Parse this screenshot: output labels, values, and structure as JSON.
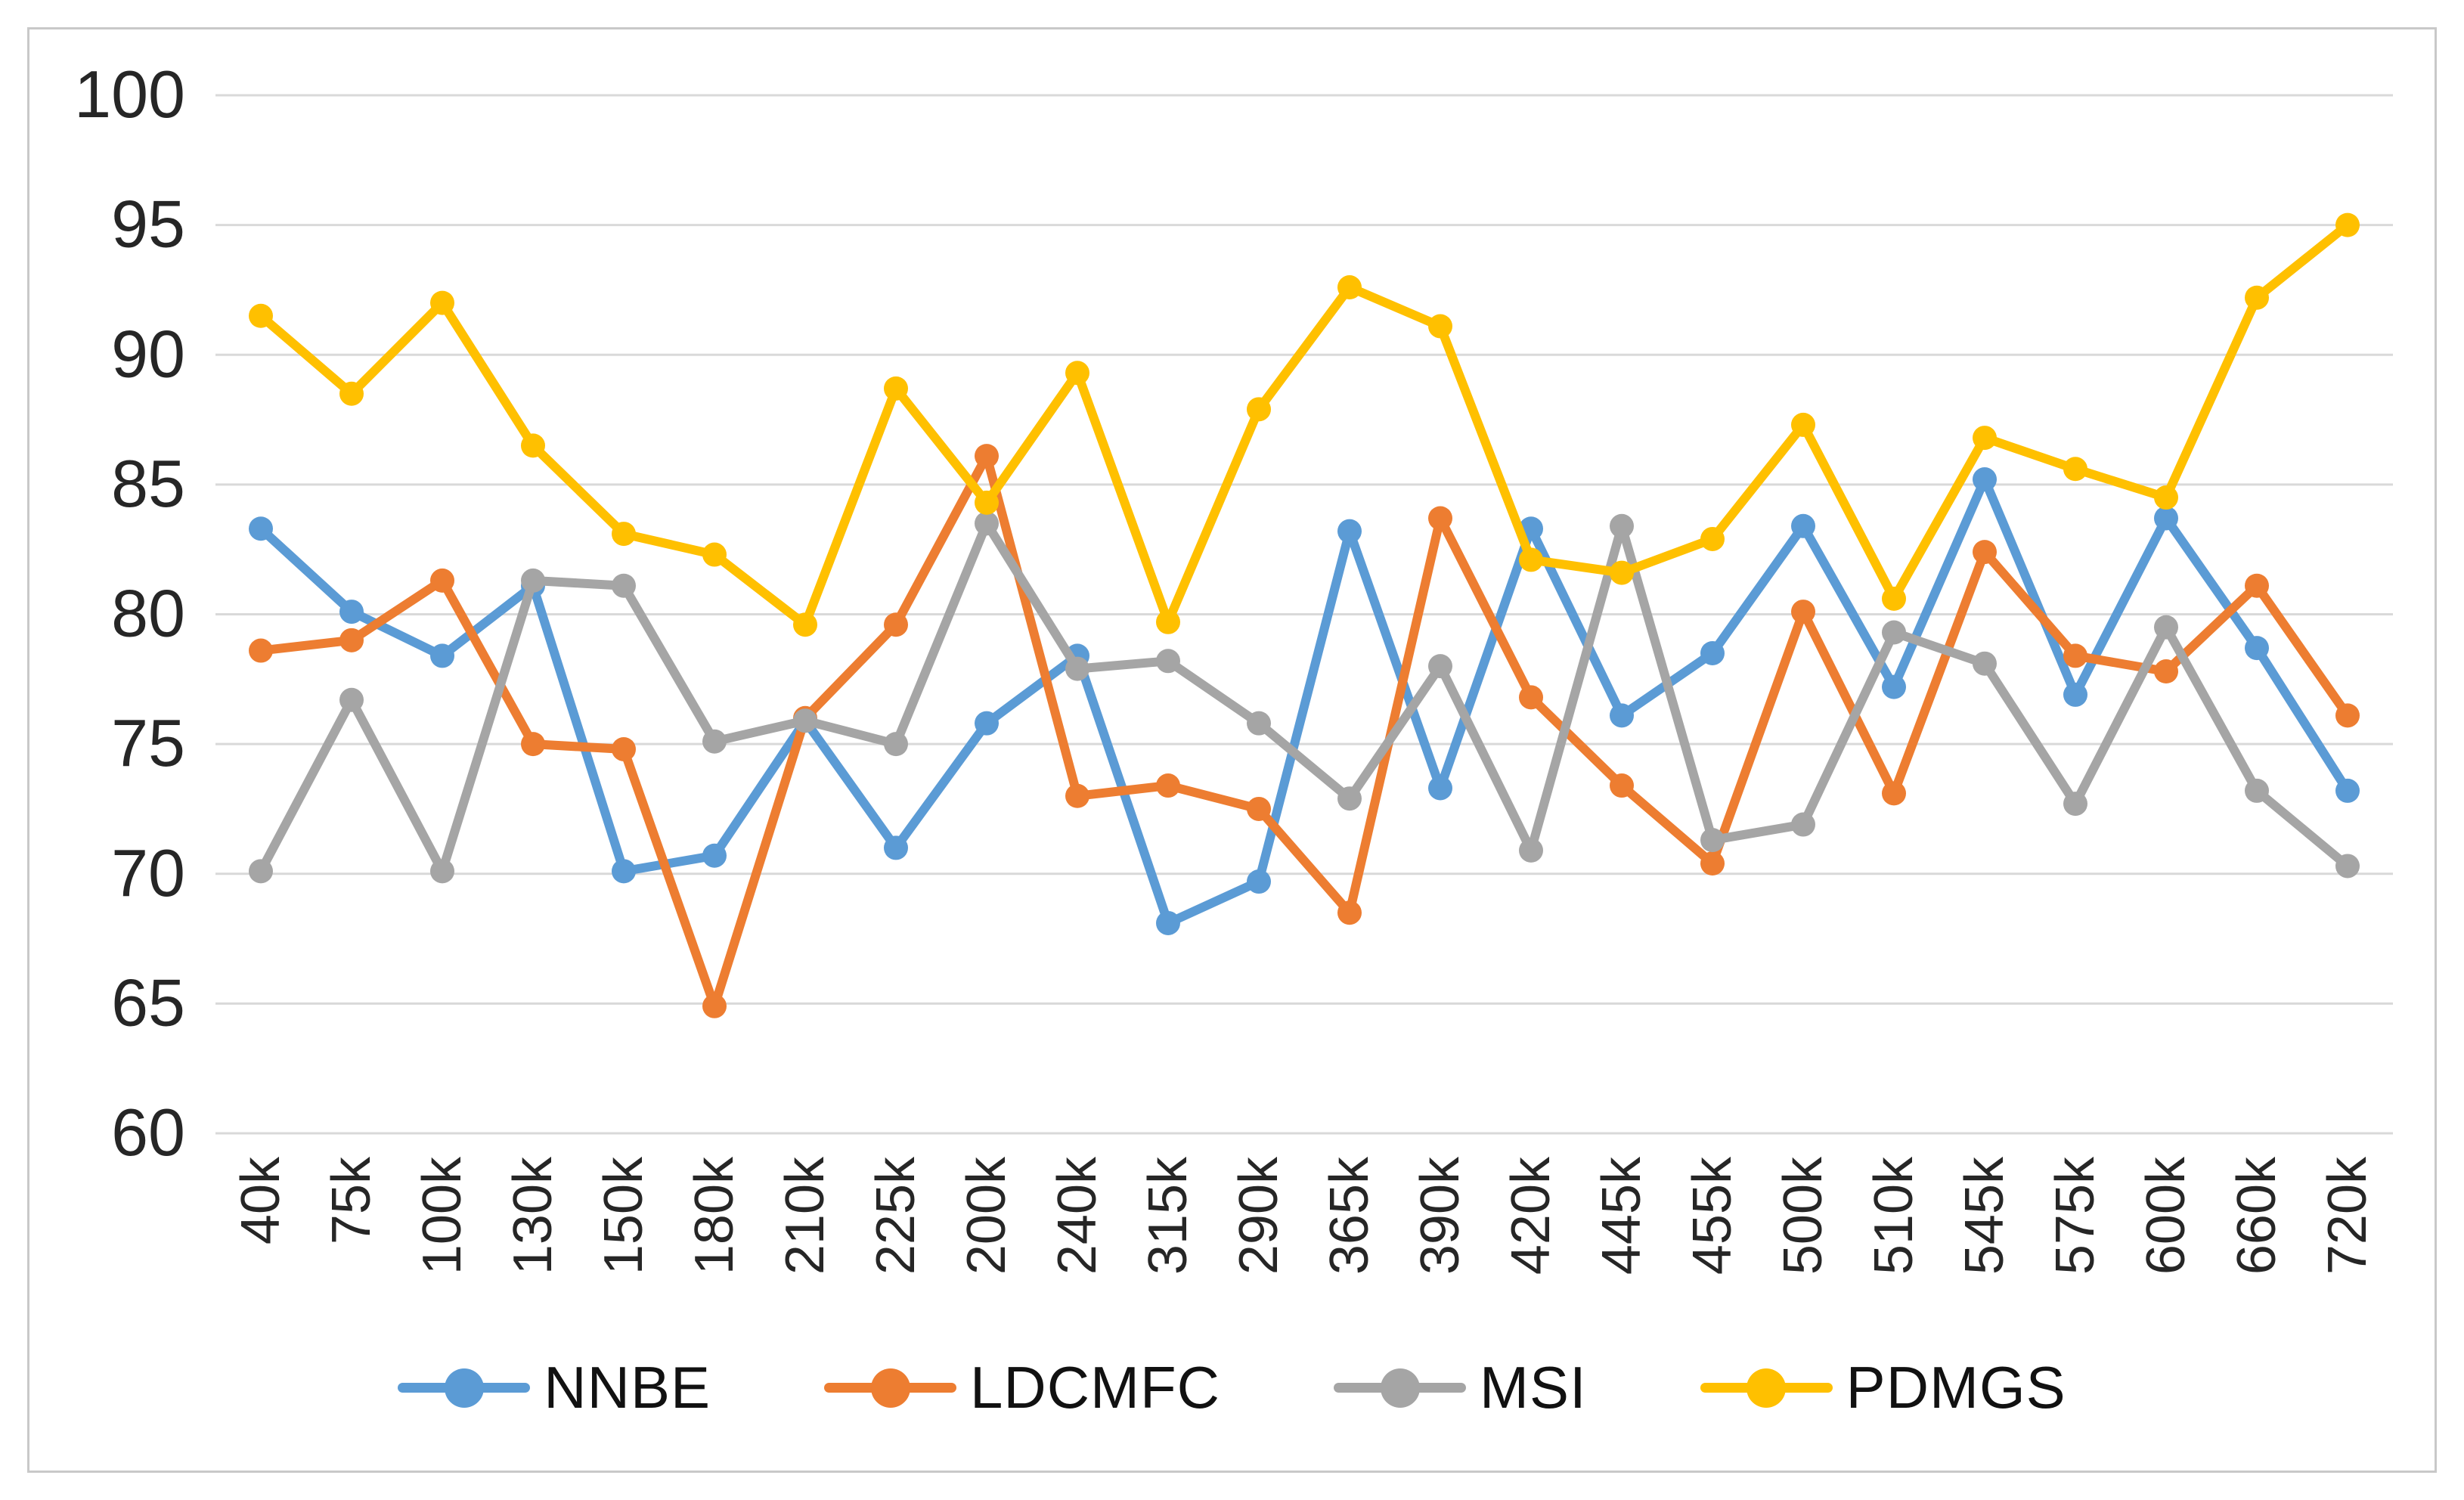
{
  "colors": {
    "background": "#ffffff",
    "frame_border": "#c9c9c9",
    "gridline": "#d9d9d9",
    "axis_text": "#262626"
  },
  "chart_data": {
    "type": "line",
    "title": "",
    "xlabel": "",
    "ylabel": "",
    "ylim": [
      60,
      100
    ],
    "yticks": [
      60,
      65,
      70,
      75,
      80,
      85,
      90,
      95,
      100
    ],
    "grid": true,
    "legend_position": "bottom",
    "marker": "circle",
    "categories": [
      "40k",
      "75k",
      "100k",
      "130k",
      "150k",
      "180k",
      "210k",
      "225k",
      "200k",
      "240k",
      "315k",
      "290k",
      "365k",
      "390k",
      "420k",
      "445k",
      "455k",
      "500k",
      "510k",
      "545k",
      "575k",
      "600k",
      "660k",
      "720k"
    ],
    "series": [
      {
        "name": "NNBE",
        "color": "#5B9BD5",
        "values": [
          83.3,
          80.1,
          78.4,
          81.1,
          70.1,
          70.7,
          75.9,
          71.0,
          75.8,
          78.4,
          68.1,
          69.7,
          83.2,
          73.3,
          83.3,
          76.1,
          78.5,
          83.4,
          77.2,
          85.2,
          76.9,
          83.7,
          78.7,
          73.2
        ]
      },
      {
        "name": "LDCMFC",
        "color": "#ED7D31",
        "values": [
          78.6,
          79.0,
          81.3,
          75.0,
          74.8,
          64.9,
          76.0,
          79.6,
          86.1,
          73.0,
          73.4,
          72.5,
          68.5,
          83.7,
          76.8,
          73.4,
          70.4,
          80.1,
          73.1,
          82.4,
          78.4,
          77.8,
          81.1,
          76.1
        ]
      },
      {
        "name": "MSI",
        "color": "#A5A5A5",
        "values": [
          70.1,
          76.7,
          70.1,
          81.3,
          81.1,
          75.1,
          75.9,
          75.0,
          83.5,
          77.9,
          78.2,
          75.8,
          72.9,
          78.0,
          70.9,
          83.4,
          71.3,
          71.9,
          79.3,
          78.1,
          72.7,
          79.5,
          73.2,
          70.3
        ]
      },
      {
        "name": "PDMGS",
        "color": "#FFC000",
        "values": [
          91.5,
          88.5,
          92.0,
          86.5,
          83.1,
          82.3,
          79.6,
          88.7,
          84.3,
          89.3,
          79.7,
          87.9,
          92.6,
          91.1,
          82.1,
          81.6,
          82.9,
          87.3,
          80.6,
          86.8,
          85.6,
          84.5,
          92.2,
          95.0
        ]
      }
    ]
  }
}
